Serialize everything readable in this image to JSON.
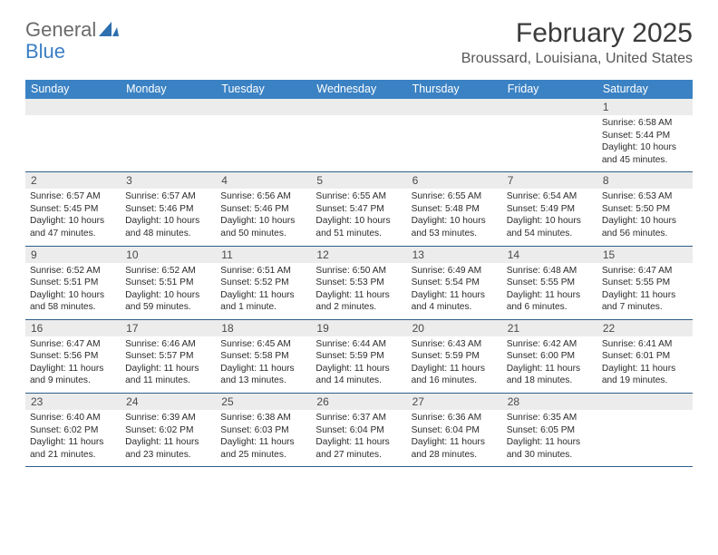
{
  "logo": {
    "word1": "General",
    "word2": "Blue"
  },
  "header": {
    "title": "February 2025",
    "location": "Broussard, Louisiana, United States"
  },
  "colors": {
    "header_bar": "#3b82c4",
    "header_text": "#ffffff",
    "daynum_bg": "#ececec",
    "rule": "#2e5e8a"
  },
  "weekdays": [
    "Sunday",
    "Monday",
    "Tuesday",
    "Wednesday",
    "Thursday",
    "Friday",
    "Saturday"
  ],
  "weeks": [
    [
      {
        "n": "",
        "sunrise": "",
        "sunset": "",
        "daylight": ""
      },
      {
        "n": "",
        "sunrise": "",
        "sunset": "",
        "daylight": ""
      },
      {
        "n": "",
        "sunrise": "",
        "sunset": "",
        "daylight": ""
      },
      {
        "n": "",
        "sunrise": "",
        "sunset": "",
        "daylight": ""
      },
      {
        "n": "",
        "sunrise": "",
        "sunset": "",
        "daylight": ""
      },
      {
        "n": "",
        "sunrise": "",
        "sunset": "",
        "daylight": ""
      },
      {
        "n": "1",
        "sunrise": "Sunrise: 6:58 AM",
        "sunset": "Sunset: 5:44 PM",
        "daylight": "Daylight: 10 hours and 45 minutes."
      }
    ],
    [
      {
        "n": "2",
        "sunrise": "Sunrise: 6:57 AM",
        "sunset": "Sunset: 5:45 PM",
        "daylight": "Daylight: 10 hours and 47 minutes."
      },
      {
        "n": "3",
        "sunrise": "Sunrise: 6:57 AM",
        "sunset": "Sunset: 5:46 PM",
        "daylight": "Daylight: 10 hours and 48 minutes."
      },
      {
        "n": "4",
        "sunrise": "Sunrise: 6:56 AM",
        "sunset": "Sunset: 5:46 PM",
        "daylight": "Daylight: 10 hours and 50 minutes."
      },
      {
        "n": "5",
        "sunrise": "Sunrise: 6:55 AM",
        "sunset": "Sunset: 5:47 PM",
        "daylight": "Daylight: 10 hours and 51 minutes."
      },
      {
        "n": "6",
        "sunrise": "Sunrise: 6:55 AM",
        "sunset": "Sunset: 5:48 PM",
        "daylight": "Daylight: 10 hours and 53 minutes."
      },
      {
        "n": "7",
        "sunrise": "Sunrise: 6:54 AM",
        "sunset": "Sunset: 5:49 PM",
        "daylight": "Daylight: 10 hours and 54 minutes."
      },
      {
        "n": "8",
        "sunrise": "Sunrise: 6:53 AM",
        "sunset": "Sunset: 5:50 PM",
        "daylight": "Daylight: 10 hours and 56 minutes."
      }
    ],
    [
      {
        "n": "9",
        "sunrise": "Sunrise: 6:52 AM",
        "sunset": "Sunset: 5:51 PM",
        "daylight": "Daylight: 10 hours and 58 minutes."
      },
      {
        "n": "10",
        "sunrise": "Sunrise: 6:52 AM",
        "sunset": "Sunset: 5:51 PM",
        "daylight": "Daylight: 10 hours and 59 minutes."
      },
      {
        "n": "11",
        "sunrise": "Sunrise: 6:51 AM",
        "sunset": "Sunset: 5:52 PM",
        "daylight": "Daylight: 11 hours and 1 minute."
      },
      {
        "n": "12",
        "sunrise": "Sunrise: 6:50 AM",
        "sunset": "Sunset: 5:53 PM",
        "daylight": "Daylight: 11 hours and 2 minutes."
      },
      {
        "n": "13",
        "sunrise": "Sunrise: 6:49 AM",
        "sunset": "Sunset: 5:54 PM",
        "daylight": "Daylight: 11 hours and 4 minutes."
      },
      {
        "n": "14",
        "sunrise": "Sunrise: 6:48 AM",
        "sunset": "Sunset: 5:55 PM",
        "daylight": "Daylight: 11 hours and 6 minutes."
      },
      {
        "n": "15",
        "sunrise": "Sunrise: 6:47 AM",
        "sunset": "Sunset: 5:55 PM",
        "daylight": "Daylight: 11 hours and 7 minutes."
      }
    ],
    [
      {
        "n": "16",
        "sunrise": "Sunrise: 6:47 AM",
        "sunset": "Sunset: 5:56 PM",
        "daylight": "Daylight: 11 hours and 9 minutes."
      },
      {
        "n": "17",
        "sunrise": "Sunrise: 6:46 AM",
        "sunset": "Sunset: 5:57 PM",
        "daylight": "Daylight: 11 hours and 11 minutes."
      },
      {
        "n": "18",
        "sunrise": "Sunrise: 6:45 AM",
        "sunset": "Sunset: 5:58 PM",
        "daylight": "Daylight: 11 hours and 13 minutes."
      },
      {
        "n": "19",
        "sunrise": "Sunrise: 6:44 AM",
        "sunset": "Sunset: 5:59 PM",
        "daylight": "Daylight: 11 hours and 14 minutes."
      },
      {
        "n": "20",
        "sunrise": "Sunrise: 6:43 AM",
        "sunset": "Sunset: 5:59 PM",
        "daylight": "Daylight: 11 hours and 16 minutes."
      },
      {
        "n": "21",
        "sunrise": "Sunrise: 6:42 AM",
        "sunset": "Sunset: 6:00 PM",
        "daylight": "Daylight: 11 hours and 18 minutes."
      },
      {
        "n": "22",
        "sunrise": "Sunrise: 6:41 AM",
        "sunset": "Sunset: 6:01 PM",
        "daylight": "Daylight: 11 hours and 19 minutes."
      }
    ],
    [
      {
        "n": "23",
        "sunrise": "Sunrise: 6:40 AM",
        "sunset": "Sunset: 6:02 PM",
        "daylight": "Daylight: 11 hours and 21 minutes."
      },
      {
        "n": "24",
        "sunrise": "Sunrise: 6:39 AM",
        "sunset": "Sunset: 6:02 PM",
        "daylight": "Daylight: 11 hours and 23 minutes."
      },
      {
        "n": "25",
        "sunrise": "Sunrise: 6:38 AM",
        "sunset": "Sunset: 6:03 PM",
        "daylight": "Daylight: 11 hours and 25 minutes."
      },
      {
        "n": "26",
        "sunrise": "Sunrise: 6:37 AM",
        "sunset": "Sunset: 6:04 PM",
        "daylight": "Daylight: 11 hours and 27 minutes."
      },
      {
        "n": "27",
        "sunrise": "Sunrise: 6:36 AM",
        "sunset": "Sunset: 6:04 PM",
        "daylight": "Daylight: 11 hours and 28 minutes."
      },
      {
        "n": "28",
        "sunrise": "Sunrise: 6:35 AM",
        "sunset": "Sunset: 6:05 PM",
        "daylight": "Daylight: 11 hours and 30 minutes."
      },
      {
        "n": "",
        "sunrise": "",
        "sunset": "",
        "daylight": ""
      }
    ]
  ]
}
